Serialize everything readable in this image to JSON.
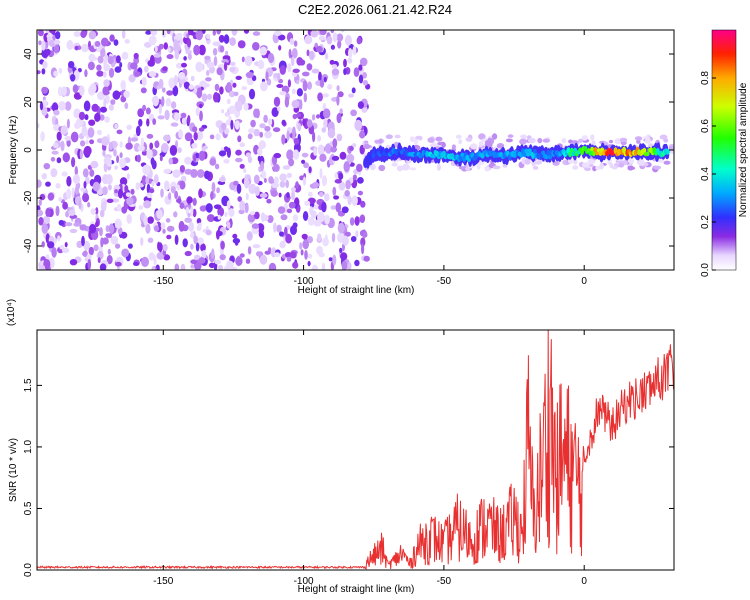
{
  "title": "C2E2.2026.061.21.42.R24",
  "chart_data": [
    {
      "type": "heatmap",
      "name": "spectrogram",
      "xlabel": "Height of straight line (km)",
      "ylabel": "Frequency (Hz)",
      "xlim": [
        -195,
        32
      ],
      "ylim": [
        -50,
        50
      ],
      "xticks": [
        -150,
        -100,
        -50,
        0
      ],
      "yticks": [
        -40,
        -20,
        0,
        20,
        40
      ],
      "noise_region_x": [
        -195,
        -77
      ],
      "signal_track": {
        "x": [
          -78,
          -75,
          -70,
          -65,
          -60,
          -55,
          -50,
          -45,
          -40,
          -35,
          -30,
          -25,
          -20,
          -15,
          -12,
          -10,
          -5,
          0,
          5,
          10,
          15,
          20,
          25,
          30
        ],
        "freq": [
          -5,
          -2,
          -1,
          -1,
          -2,
          -2,
          -2,
          -3,
          -3,
          -2,
          -2,
          -2,
          -1,
          -2,
          -2,
          -1,
          -1,
          0,
          -1,
          -1,
          -1,
          -1,
          -1,
          -1
        ],
        "amplitude": [
          0.25,
          0.25,
          0.3,
          0.3,
          0.35,
          0.4,
          0.4,
          0.4,
          0.35,
          0.35,
          0.35,
          0.35,
          0.4,
          0.35,
          0.3,
          0.35,
          0.5,
          0.6,
          0.9,
          0.95,
          0.95,
          0.9,
          0.6,
          0.4
        ]
      },
      "colorbar": {
        "label": "Normalized spectral amplitude",
        "ticks": [
          0.0,
          0.2,
          0.4,
          0.6,
          0.8
        ],
        "tick_labels": [
          "0.0",
          "0.2",
          "0.4",
          "0.6",
          "0.8"
        ],
        "range": [
          0,
          1
        ]
      }
    },
    {
      "type": "line",
      "name": "snr",
      "xlabel": "Height of straight line (km)",
      "ylabel": "SNR (10 * v/v)",
      "yscale_label": "(x10⁴)",
      "xlim": [
        -195,
        32
      ],
      "ylim": [
        0,
        1.95
      ],
      "xticks": [
        -150,
        -100,
        -50,
        0
      ],
      "yticks": [
        0.0,
        0.5,
        1.0,
        1.5
      ],
      "ytick_labels": [
        "0.0",
        "0.5",
        "1.0",
        "1.5"
      ],
      "color": "#e83030",
      "series": [
        {
          "name": "SNR",
          "x": [
            -195,
            -150,
            -100,
            -80,
            -72,
            -70,
            -68,
            -65,
            -62,
            -60,
            -55,
            -50,
            -45,
            -40,
            -35,
            -30,
            -25,
            -22,
            -20,
            -18,
            -15,
            -12,
            -10,
            -8,
            -5,
            0,
            5,
            10,
            15,
            20,
            25,
            30,
            32
          ],
          "y": [
            0.02,
            0.02,
            0.02,
            0.02,
            0.25,
            0.06,
            0.1,
            0.2,
            0.07,
            0.25,
            0.4,
            0.3,
            0.5,
            0.35,
            0.55,
            0.4,
            0.6,
            0.45,
            1.5,
            0.6,
            1.2,
            1.95,
            1.0,
            1.35,
            1.2,
            0.9,
            1.35,
            1.2,
            1.4,
            1.45,
            1.55,
            1.65,
            1.7
          ]
        }
      ]
    }
  ]
}
